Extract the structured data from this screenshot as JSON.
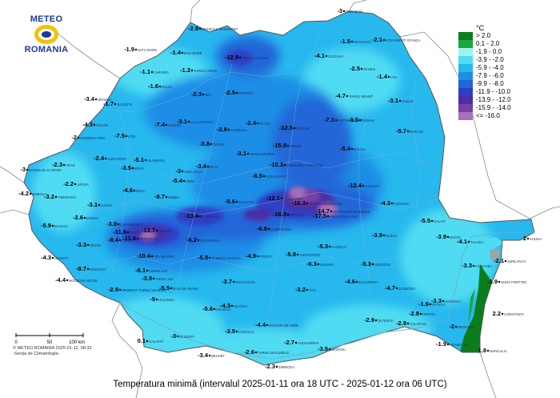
{
  "map": {
    "title": "Temperatura minimă (intervalul 2025-01-11 ora 18 UTC - 2025-01-12 ora 06 UTC)",
    "logo": {
      "line1": "METEO",
      "line2": "ROMANIA"
    },
    "credit": {
      "line1": "© METEO ROMANIA 2025-01-12, 08:32",
      "line2": "-Secția de Climatologie-"
    },
    "scale": {
      "ticks": [
        "0",
        "50",
        "100 km"
      ]
    },
    "legend": {
      "unit": "°C",
      "items": [
        {
          "label": "> 2.0",
          "color": "#0b7d1a"
        },
        {
          "label": "0.1 - 2.0",
          "color": "#17a93a"
        },
        {
          "label": "-1.9 - 0.0",
          "color": "#9ef2f2"
        },
        {
          "label": "-3.9 - -2.0",
          "color": "#4fdcf2"
        },
        {
          "label": "-5.9 - -4.0",
          "color": "#27b8ee"
        },
        {
          "label": "-7.9 - -6.0",
          "color": "#1c8ee6"
        },
        {
          "label": "-9.9 - -8.0",
          "color": "#2266d8"
        },
        {
          "label": "-11.9 - -10.0",
          "color": "#2d3fc4"
        },
        {
          "label": "-13.9 - -12.0",
          "color": "#4a2ea8"
        },
        {
          "label": "-15.9 - -14.0",
          "color": "#7a3fa6"
        },
        {
          "label": "<= -16.0",
          "color": "#a870b8"
        }
      ]
    },
    "stations": [
      {
        "name": "SATU MARE",
        "value": "-1.9"
      },
      {
        "name": "SIGHETUL MARMATIEI",
        "value": "-2.9"
      },
      {
        "name": "OCNA SUGATAG",
        "value": "-12.9"
      },
      {
        "name": "BAIA MARE",
        "value": "-1.4"
      },
      {
        "name": "CARAREI",
        "value": "-1.1"
      },
      {
        "name": "SUCEAVA",
        "value": "-4.1"
      },
      {
        "name": "BOTOSANI",
        "value": "-1.5"
      },
      {
        "name": "DARABANI",
        "value": "-3"
      },
      {
        "name": "STEFANESTI STANCA",
        "value": "-2.1"
      },
      {
        "name": "IASI",
        "value": "-1.4"
      },
      {
        "name": "ORADEA",
        "value": "-3.4"
      },
      {
        "name": "SALONTA",
        "value": "-1.7"
      },
      {
        "name": "CLUJ-NAPOCA",
        "value": "-3.1"
      },
      {
        "name": "BISTRITA",
        "value": "-2.5"
      },
      {
        "name": "BACAU",
        "value": "-5.4"
      },
      {
        "name": "VASLUI",
        "value": "-3.1"
      },
      {
        "name": "BARLAD",
        "value": "-5.7"
      },
      {
        "name": "ARAD",
        "value": "-2.3"
      },
      {
        "name": "DEVA",
        "value": "-4.6"
      },
      {
        "name": "SIBIU",
        "value": "-5.4"
      },
      {
        "name": "MIERCUREA CIUC",
        "value": "-17.5"
      },
      {
        "name": "BRASOV",
        "value": "-16.3"
      },
      {
        "name": "TIMISOARA",
        "value": "-3.2"
      },
      {
        "name": "GALATI",
        "value": "-5.5"
      },
      {
        "name": "TULCEA",
        "value": "-4.1"
      },
      {
        "name": "SULINA",
        "value": "2"
      },
      {
        "name": "GURA PORTITEI",
        "value": "-1.9"
      },
      {
        "name": "BUZAU",
        "value": "-3.9"
      },
      {
        "name": "BUCURESTI",
        "value": "-4.6"
      },
      {
        "name": "CONSTANTA",
        "value": "2.2"
      },
      {
        "name": "MANGALIA",
        "value": "1.8"
      },
      {
        "name": "CRAIOVA",
        "value": "-5.6"
      },
      {
        "name": "DROBETA-TURNU SEVERIN",
        "value": "-2.9"
      },
      {
        "name": "BAILESTI",
        "value": "-3"
      },
      {
        "name": "CALAFAT",
        "value": "0.1"
      },
      {
        "name": "TURNU MAGURELE",
        "value": "-2.6"
      },
      {
        "name": "ALEXANDRIA",
        "value": "-2.7"
      },
      {
        "name": "GIURGIU",
        "value": "-3.5"
      },
      {
        "name": "ZIMNICEA",
        "value": "-2.3"
      },
      {
        "name": "CALARASI",
        "value": "-2.9"
      },
      {
        "name": "SLOBOZIA",
        "value": "-4.7"
      },
      {
        "name": "MEDGIDIA",
        "value": "-2"
      },
      {
        "name": "HARSOVA",
        "value": "-3.3"
      },
      {
        "name": "ADAMCLISI",
        "value": "-1.9"
      },
      {
        "name": "RESITA",
        "value": "-3.3"
      },
      {
        "name": "CARANSEBES",
        "value": "-3.8"
      },
      {
        "name": "MOLDOVA VECHE",
        "value": "-4.4"
      },
      {
        "name": "ORAVITA",
        "value": "-4.3"
      },
      {
        "name": "SANNICOLAU MARE",
        "value": "-3"
      },
      {
        "name": "JIMBOLIA",
        "value": "-4.2"
      },
      {
        "name": "LUGOJ",
        "value": "-3.1"
      },
      {
        "name": "PETROSANI",
        "value": "-11.6"
      },
      {
        "name": "TARGU JIU",
        "value": "-3.9"
      },
      {
        "name": "RAMNICU VALCEA",
        "value": "-5.8"
      },
      {
        "name": "PITESTI",
        "value": "-4.9"
      },
      {
        "name": "TARGOVISTE",
        "value": "-5.8"
      },
      {
        "name": "PLOIESTI",
        "value": "-5.3"
      },
      {
        "name": "FOCSANI",
        "value": "-4.3"
      },
      {
        "name": "SLATINA",
        "value": "-4.3"
      },
      {
        "name": "CARACAL",
        "value": "-3.5"
      },
      {
        "name": "ROSIORI DE VEDE",
        "value": "-4.4"
      },
      {
        "name": "URZICENI",
        "value": "-5.3"
      },
      {
        "name": "TARGU MURES",
        "value": "-3.1"
      },
      {
        "name": "SIGHISOARA",
        "value": "-6.5"
      },
      {
        "name": "ODORHEIUL SECUIESC",
        "value": "-10.3"
      },
      {
        "name": "TOPLITA",
        "value": "-12.5"
      },
      {
        "name": "JOSENI",
        "value": "-15.9"
      },
      {
        "name": "PIATRA NEAMT",
        "value": "-7.1"
      },
      {
        "name": "ROMAN",
        "value": "-3.5"
      },
      {
        "name": "TARGU NEAMT",
        "value": "-4.7"
      },
      {
        "name": "VARFU OMU",
        "value": "-12.1"
      },
      {
        "name": "SFANTU GHEORGHE",
        "value": "-16.3"
      },
      {
        "name": "INTORSURA BUZAULUI",
        "value": "-14.7"
      },
      {
        "name": "ALBA IULIA",
        "value": "-3"
      },
      {
        "name": "BLAJ",
        "value": "-3.4"
      },
      {
        "name": "TURDA",
        "value": "-3.8"
      },
      {
        "name": "ZALAU",
        "value": "-1.6"
      },
      {
        "name": "HUEDIN",
        "value": "-7.4"
      },
      {
        "name": "SCHEIA",
        "value": "-2.5"
      },
      {
        "name": "VLADEASA",
        "value": "-5.1"
      },
      {
        "name": "HOLOD",
        "value": "-4.3"
      },
      {
        "name": "STEI",
        "value": "-7.5"
      },
      {
        "name": "GURAHONT",
        "value": "-2.4"
      },
      {
        "name": "BRAD",
        "value": "-3.5"
      },
      {
        "name": "LIPOVA",
        "value": "-2.2"
      },
      {
        "name": "CHISINEU CRIS",
        "value": "-2"
      },
      {
        "name": "SEBES",
        "value": "-9.7"
      },
      {
        "name": "PARANG",
        "value": "-13.7"
      },
      {
        "name": "VOINEASA",
        "value": "-13.4"
      },
      {
        "name": "OLTENITA",
        "value": "-2.9"
      },
      {
        "name": "MACIN",
        "value": "-3.9"
      },
      {
        "name": "JURILOVCA",
        "value": "-2.1"
      },
      {
        "name": "CORUGEA",
        "value": "-3.3"
      },
      {
        "name": "FETESTI",
        "value": "-1.6"
      },
      {
        "name": "TARGU LAPUS",
        "value": "-1.2"
      },
      {
        "name": "DEJ",
        "value": "-2.3"
      },
      {
        "name": "FAGARAS",
        "value": "-5.6"
      },
      {
        "name": "SARMASU",
        "value": "-2.8"
      },
      {
        "name": "BATOS",
        "value": "-2.4"
      },
      {
        "name": "RAZVAD",
        "value": "-6.3"
      },
      {
        "name": "TITU",
        "value": "-3.2"
      },
      {
        "name": "BANLOC",
        "value": "-5.9"
      },
      {
        "name": "BUZIAS",
        "value": "-2.6"
      },
      {
        "name": "CAMPULUNG",
        "value": "-6.8"
      },
      {
        "name": "POLOVRAGI",
        "value": "-6.2"
      },
      {
        "name": "APA NEAGRA",
        "value": "-10.4"
      },
      {
        "name": "HALANGA",
        "value": "-5"
      },
      {
        "name": "BAIA DE ARAMA",
        "value": "-5.5"
      },
      {
        "name": "DRAGASANI",
        "value": "-3.7"
      },
      {
        "name": "BECHET",
        "value": "-3.4"
      },
      {
        "name": "GRIVITA",
        "value": "-2.8"
      },
      {
        "name": "LACAUTI",
        "value": "-12.4"
      },
      {
        "name": "TARCU",
        "value": "-8.4"
      },
      {
        "name": "CUNTU",
        "value": "-11.6"
      },
      {
        "name": "BOZOVICI",
        "value": "-9.7"
      },
      {
        "name": "CERNA SAT",
        "value": "-8.1"
      }
    ]
  }
}
